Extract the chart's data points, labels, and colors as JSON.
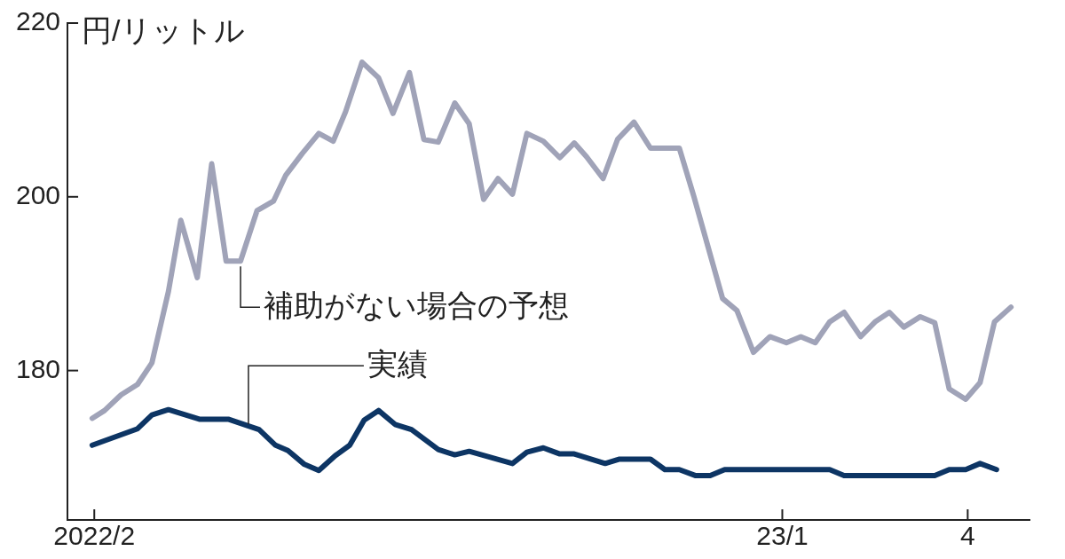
{
  "chart_data": {
    "type": "line",
    "ylabel": "円/リットル",
    "xlim": [
      "2022-01-19",
      "2023-05-01"
    ],
    "xticks": [
      {
        "value": "2022-02",
        "label": "2022/2"
      },
      {
        "value": "2023-01",
        "label": "23/1"
      },
      {
        "value": "2023-04",
        "label": "4"
      }
    ],
    "ylim": [
      162.8,
      220
    ],
    "yticks": [
      180,
      200,
      220
    ],
    "grid": false,
    "legend": false,
    "marker": "none",
    "line_style": "solid",
    "series": [
      {
        "name": "補助がない場合の予想",
        "color": "#a0a3b8",
        "x": [
          "2022-01-31",
          "2022-02-06",
          "2022-02-14",
          "2022-02-22",
          "2022-03-01",
          "2022-03-09",
          "2022-03-15",
          "2022-03-23",
          "2022-03-30",
          "2022-04-06",
          "2022-04-13",
          "2022-04-21",
          "2022-04-29",
          "2022-05-05",
          "2022-05-13",
          "2022-05-21",
          "2022-05-28",
          "2022-06-03",
          "2022-06-11",
          "2022-06-19",
          "2022-06-26",
          "2022-07-04",
          "2022-07-11",
          "2022-07-18",
          "2022-07-26",
          "2022-08-02",
          "2022-08-09",
          "2022-08-16",
          "2022-08-23",
          "2022-08-30",
          "2022-09-07",
          "2022-09-15",
          "2022-09-22",
          "2022-09-28",
          "2022-10-06",
          "2022-10-13",
          "2022-10-21",
          "2022-10-29",
          "2022-11-05",
          "2022-11-12",
          "2022-11-19",
          "2022-11-26",
          "2022-12-03",
          "2022-12-10",
          "2022-12-18",
          "2022-12-26",
          "2023-01-03",
          "2023-01-10",
          "2023-01-17",
          "2023-01-24",
          "2023-01-31",
          "2023-02-08",
          "2023-02-15",
          "2023-02-22",
          "2023-03-01",
          "2023-03-09",
          "2023-03-16",
          "2023-03-23",
          "2023-03-31",
          "2023-04-07",
          "2023-04-14",
          "2023-04-22"
        ],
        "values": [
          174.5,
          175.4,
          177.2,
          178.4,
          180.9,
          189.1,
          197.3,
          190.7,
          203.8,
          192.6,
          192.6,
          198.4,
          199.5,
          202.5,
          205.0,
          207.3,
          206.4,
          209.8,
          215.5,
          213.7,
          209.6,
          214.3,
          206.6,
          206.3,
          210.8,
          208.4,
          199.7,
          202.1,
          200.3,
          207.3,
          206.4,
          204.5,
          206.2,
          204.6,
          202.1,
          206.6,
          208.6,
          205.6,
          205.6,
          205.6,
          200.1,
          194.2,
          188.3,
          186.9,
          182.1,
          183.9,
          183.2,
          183.9,
          183.2,
          185.6,
          186.7,
          183.9,
          185.6,
          186.7,
          185.0,
          186.2,
          185.5,
          177.9,
          176.7,
          178.6,
          185.6,
          187.3
        ]
      },
      {
        "name": "実績",
        "color": "#0d3564",
        "x": [
          "2022-01-31",
          "2022-02-22",
          "2022-03-01",
          "2022-03-09",
          "2022-03-24",
          "2022-04-07",
          "2022-04-22",
          "2022-04-30",
          "2022-05-06",
          "2022-05-14",
          "2022-05-21",
          "2022-05-29",
          "2022-06-05",
          "2022-06-12",
          "2022-06-19",
          "2022-06-27",
          "2022-07-05",
          "2022-07-18",
          "2022-07-26",
          "2022-08-02",
          "2022-08-23",
          "2022-08-30",
          "2022-09-07",
          "2022-09-15",
          "2022-09-22",
          "2022-10-07",
          "2022-10-14",
          "2022-10-29",
          "2022-11-05",
          "2022-11-12",
          "2022-11-20",
          "2022-11-27",
          "2022-12-04",
          "2023-01-24",
          "2023-01-31",
          "2023-03-16",
          "2023-03-23",
          "2023-03-31",
          "2023-04-07",
          "2023-04-15"
        ],
        "values": [
          171.4,
          173.3,
          174.9,
          175.5,
          174.4,
          174.4,
          173.2,
          171.4,
          170.8,
          169.2,
          168.5,
          170.2,
          171.4,
          174.3,
          175.4,
          173.8,
          173.2,
          170.9,
          170.3,
          170.7,
          169.3,
          170.6,
          171.1,
          170.4,
          170.4,
          169.3,
          169.8,
          169.8,
          168.6,
          168.6,
          167.9,
          167.9,
          168.6,
          168.6,
          167.9,
          167.9,
          168.6,
          168.6,
          169.3,
          168.6
        ]
      }
    ]
  }
}
